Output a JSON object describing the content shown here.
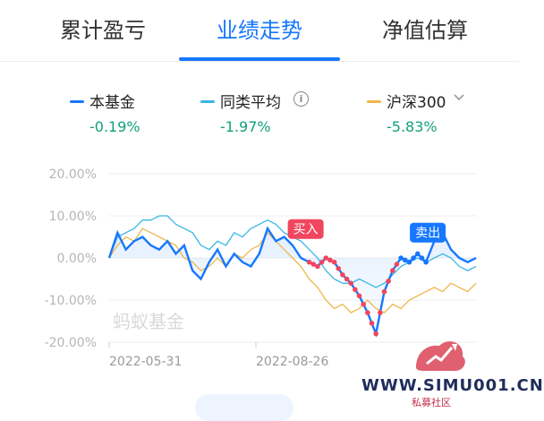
{
  "tabs": [
    {
      "label": "累计盈亏",
      "active": false
    },
    {
      "label": "业绩走势",
      "active": true
    },
    {
      "label": "净值估算",
      "active": false
    }
  ],
  "legend": [
    {
      "name": "本基金",
      "value": "-0.19%",
      "color": "#1677ff",
      "value_color": "#13a07a"
    },
    {
      "name": "同类平均",
      "value": "-1.97%",
      "color": "#38b6e6",
      "value_color": "#13a07a",
      "icon": "info-icon"
    },
    {
      "name": "沪深300",
      "value": "-5.83%",
      "color": "#f0b54a",
      "value_color": "#13a07a",
      "icon": "chevron-down-icon"
    }
  ],
  "chart_watermark": "蚂蚁基金",
  "markers": {
    "buy": "买入",
    "sell": "卖出",
    "buy_color": "#f0465e",
    "sell_color": "#1677ff"
  },
  "site_watermark": {
    "text": "WWW.SIMU001.CN",
    "sub": "私募社区"
  },
  "chart_data": {
    "type": "line",
    "ylim": [
      -20,
      20
    ],
    "yticks": [
      "20.00%",
      "10.00%",
      "0.00%",
      "-10.00%",
      "-20.00%"
    ],
    "xticks": [
      "2022-05-31",
      "2022-08-26"
    ],
    "series": [
      {
        "name": "本基金",
        "color": "#1677ff",
        "values": [
          0,
          6,
          2,
          4,
          5,
          3,
          2,
          4,
          1,
          3,
          -3,
          -5,
          -1,
          2,
          -2,
          1,
          -1,
          -2,
          1,
          7,
          4,
          5,
          3,
          0,
          -1,
          -2,
          0,
          -1,
          -4,
          -6,
          -9,
          -13,
          -18,
          -8,
          -3,
          0,
          -1,
          1,
          -1,
          4,
          6,
          2,
          0,
          -1,
          0
        ]
      },
      {
        "name": "同类平均",
        "color": "#38b6e6",
        "values": [
          0,
          5,
          6,
          7,
          9,
          9,
          10,
          10,
          8,
          7,
          6,
          3,
          2,
          4,
          3,
          6,
          5,
          7,
          8,
          9,
          8,
          6,
          5,
          4,
          2,
          0,
          -3,
          -5,
          -6,
          -6,
          -5,
          -6,
          -7,
          -6,
          -4,
          -2,
          -1,
          0,
          -1,
          0,
          1,
          0,
          -2,
          -3,
          -2
        ]
      },
      {
        "name": "沪深300",
        "color": "#f0b54a",
        "values": [
          0,
          3,
          5,
          4,
          7,
          6,
          5,
          4,
          3,
          0,
          -1,
          -3,
          -2,
          0,
          -2,
          1,
          0,
          2,
          3,
          6,
          4,
          2,
          0,
          -2,
          -5,
          -7,
          -10,
          -12,
          -11,
          -13,
          -12,
          -10,
          -12,
          -13,
          -11,
          -12,
          -10,
          -9,
          -8,
          -7,
          -8,
          -6,
          -7,
          -8,
          -6
        ]
      }
    ],
    "x_count": 45,
    "buy_index": 24,
    "sell_index": 38,
    "legend_position": "top"
  }
}
